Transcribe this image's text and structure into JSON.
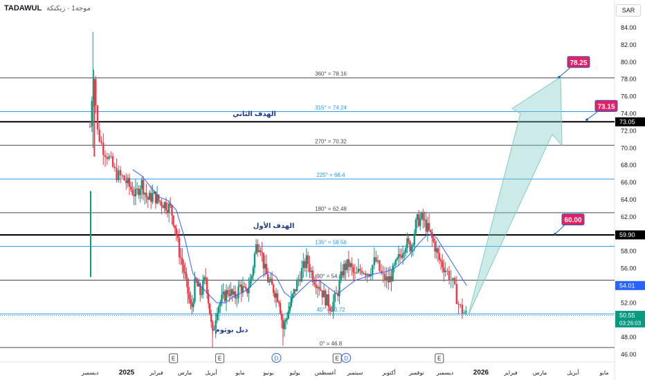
{
  "header": {
    "symbol": "TADAWUL",
    "subtitle": "موجه1 · زيكنكة"
  },
  "currency": "SAR",
  "colors": {
    "up": "#089981",
    "down": "#f23645",
    "ma": "#2962ff",
    "fib": "#2196f3",
    "level": "#131722",
    "target": "#e91e63",
    "arrow": "#80cbc4"
  },
  "chart_data": {
    "type": "candlestick",
    "y_axis": {
      "min": 46,
      "max": 84,
      "ticks": [
        46,
        48,
        50,
        52,
        54,
        56,
        58,
        60,
        62,
        64,
        66,
        68,
        70,
        72,
        74,
        76,
        78,
        80,
        82,
        84
      ]
    },
    "x_axis_labels": [
      "ديسمبر",
      "2025",
      "فبراير",
      "مارس",
      "أبريل",
      "مايو",
      "يونيو",
      "يوليو",
      "أغسطس",
      "سبتمبر",
      "أكتوبر",
      "نوفمبر",
      "ديسمبر",
      "2026",
      "فبراير",
      "مارس",
      "أبريل",
      "مايو"
    ],
    "fib_levels": [
      {
        "label": "360° = 78.16",
        "value": 78.16,
        "style": "dark"
      },
      {
        "label": "315° = 74.24",
        "value": 74.24,
        "style": "blue"
      },
      {
        "label": "270° = 70.32",
        "value": 70.32,
        "style": "dark"
      },
      {
        "label": "225° = 66.4",
        "value": 66.4,
        "style": "blue"
      },
      {
        "label": "180° = 62.48",
        "value": 62.48,
        "style": "dark"
      },
      {
        "label": "135° = 58.56",
        "value": 58.56,
        "style": "blue"
      },
      {
        "label": "90° = 54.64",
        "value": 54.64,
        "style": "dark"
      },
      {
        "label": "45° = 50.72",
        "value": 50.72,
        "style": "blue"
      },
      {
        "label": "0° = 46.8",
        "value": 46.8,
        "style": "dark"
      }
    ],
    "key_levels": [
      73.05,
      59.9
    ],
    "annotations": [
      {
        "text": "الهدف الثاني",
        "x_month": 8.5,
        "y": 73.7
      },
      {
        "text": "الهدف الأول",
        "x_month": 9.2,
        "y": 60.7
      },
      {
        "text": "دبل بوتوم",
        "x_month": 7.7,
        "y": 48.6
      }
    ],
    "targets": [
      {
        "label": "78.25",
        "value": 78.25
      },
      {
        "label": "73.15",
        "value": 73.15
      },
      {
        "label": "60.00",
        "value": 60.0
      }
    ],
    "axis_badges": [
      {
        "label": "73.05",
        "value": 73.05,
        "kind": "black"
      },
      {
        "label": "59.90",
        "value": 59.9,
        "kind": "black"
      },
      {
        "label": "54.01",
        "value": 54.01,
        "kind": "blue"
      },
      {
        "label": "50.55",
        "value": 50.55,
        "kind": "green",
        "sub": "03:26:03"
      }
    ],
    "events": [
      {
        "letter": "E",
        "x_month": 5.6
      },
      {
        "letter": "E",
        "x_month": 7.3
      },
      {
        "letter": "D",
        "x_month": 9.3
      },
      {
        "letter": "E",
        "x_month": 11.4
      },
      {
        "letter": "D",
        "x_month": 11.7
      },
      {
        "letter": "E",
        "x_month": 14.8
      }
    ],
    "price_path": [
      [
        3.0,
        72.5
      ],
      [
        3.1,
        79.0
      ],
      [
        3.2,
        72.0
      ],
      [
        3.35,
        70.0
      ],
      [
        3.5,
        69.0
      ],
      [
        3.7,
        67.0
      ],
      [
        3.9,
        66.5
      ],
      [
        4.1,
        65.5
      ],
      [
        4.3,
        64.5
      ],
      [
        4.5,
        66.0
      ],
      [
        4.7,
        64.0
      ],
      [
        4.9,
        64.5
      ],
      [
        5.1,
        63.8
      ],
      [
        5.3,
        63.5
      ],
      [
        5.5,
        63.0
      ],
      [
        5.65,
        61.0
      ],
      [
        5.8,
        58.0
      ],
      [
        5.95,
        56.0
      ],
      [
        6.1,
        53.5
      ],
      [
        6.25,
        51.0
      ],
      [
        6.4,
        54.5
      ],
      [
        6.6,
        53.0
      ],
      [
        6.8,
        55.0
      ],
      [
        6.95,
        51.0
      ],
      [
        7.05,
        48.0
      ],
      [
        7.2,
        51.5
      ],
      [
        7.4,
        52.5
      ],
      [
        7.6,
        53.5
      ],
      [
        7.8,
        52.5
      ],
      [
        8.0,
        54.0
      ],
      [
        8.2,
        53.0
      ],
      [
        8.4,
        55.0
      ],
      [
        8.55,
        58.5
      ],
      [
        8.7,
        59.0
      ],
      [
        8.85,
        56.0
      ],
      [
        9.0,
        54.5
      ],
      [
        9.2,
        53.5
      ],
      [
        9.4,
        52.5
      ],
      [
        9.55,
        49.0
      ],
      [
        9.7,
        50.5
      ],
      [
        9.85,
        52.0
      ],
      [
        10.0,
        53.5
      ],
      [
        10.2,
        55.5
      ],
      [
        10.4,
        57.0
      ],
      [
        10.6,
        55.0
      ],
      [
        10.8,
        54.0
      ],
      [
        11.0,
        52.5
      ],
      [
        11.2,
        51.5
      ],
      [
        11.4,
        53.0
      ],
      [
        11.6,
        56.0
      ],
      [
        11.8,
        56.5
      ],
      [
        12.0,
        55.0
      ],
      [
        12.2,
        56.0
      ],
      [
        12.4,
        55.5
      ],
      [
        12.6,
        57.0
      ],
      [
        12.8,
        55.0
      ],
      [
        13.0,
        54.5
      ],
      [
        13.2,
        56.0
      ],
      [
        13.4,
        57.5
      ],
      [
        13.6,
        59.0
      ],
      [
        13.8,
        58.5
      ],
      [
        14.0,
        61.5
      ],
      [
        14.2,
        61.8
      ],
      [
        14.4,
        60.5
      ],
      [
        14.6,
        59.0
      ],
      [
        14.8,
        57.0
      ],
      [
        15.0,
        56.0
      ],
      [
        15.2,
        54.5
      ],
      [
        15.4,
        51.5
      ],
      [
        15.6,
        50.55
      ]
    ],
    "ma_path": [
      [
        4.2,
        67.5
      ],
      [
        4.5,
        66.8
      ],
      [
        4.8,
        65.5
      ],
      [
        5.1,
        64.3
      ],
      [
        5.4,
        63.9
      ],
      [
        5.7,
        62.8
      ],
      [
        6.0,
        59.5
      ],
      [
        6.3,
        55.5
      ],
      [
        6.6,
        54.0
      ],
      [
        6.9,
        53.0
      ],
      [
        7.2,
        52.0
      ],
      [
        7.5,
        52.0
      ],
      [
        7.8,
        52.8
      ],
      [
        8.1,
        53.2
      ],
      [
        8.4,
        54.0
      ],
      [
        8.7,
        55.0
      ],
      [
        9.0,
        55.6
      ],
      [
        9.3,
        55.0
      ],
      [
        9.6,
        53.2
      ],
      [
        9.9,
        52.5
      ],
      [
        10.2,
        53.5
      ],
      [
        10.5,
        54.5
      ],
      [
        10.8,
        54.6
      ],
      [
        11.1,
        53.8
      ],
      [
        11.4,
        53.0
      ],
      [
        11.7,
        53.8
      ],
      [
        12.0,
        54.6
      ],
      [
        12.3,
        55.0
      ],
      [
        12.6,
        55.4
      ],
      [
        12.9,
        55.6
      ],
      [
        13.2,
        56.0
      ],
      [
        13.5,
        56.8
      ],
      [
        13.8,
        57.8
      ],
      [
        14.1,
        59.0
      ],
      [
        14.4,
        60.0
      ],
      [
        14.7,
        59.6
      ],
      [
        15.0,
        58.0
      ],
      [
        15.3,
        56.0
      ],
      [
        15.6,
        54.0
      ]
    ]
  }
}
